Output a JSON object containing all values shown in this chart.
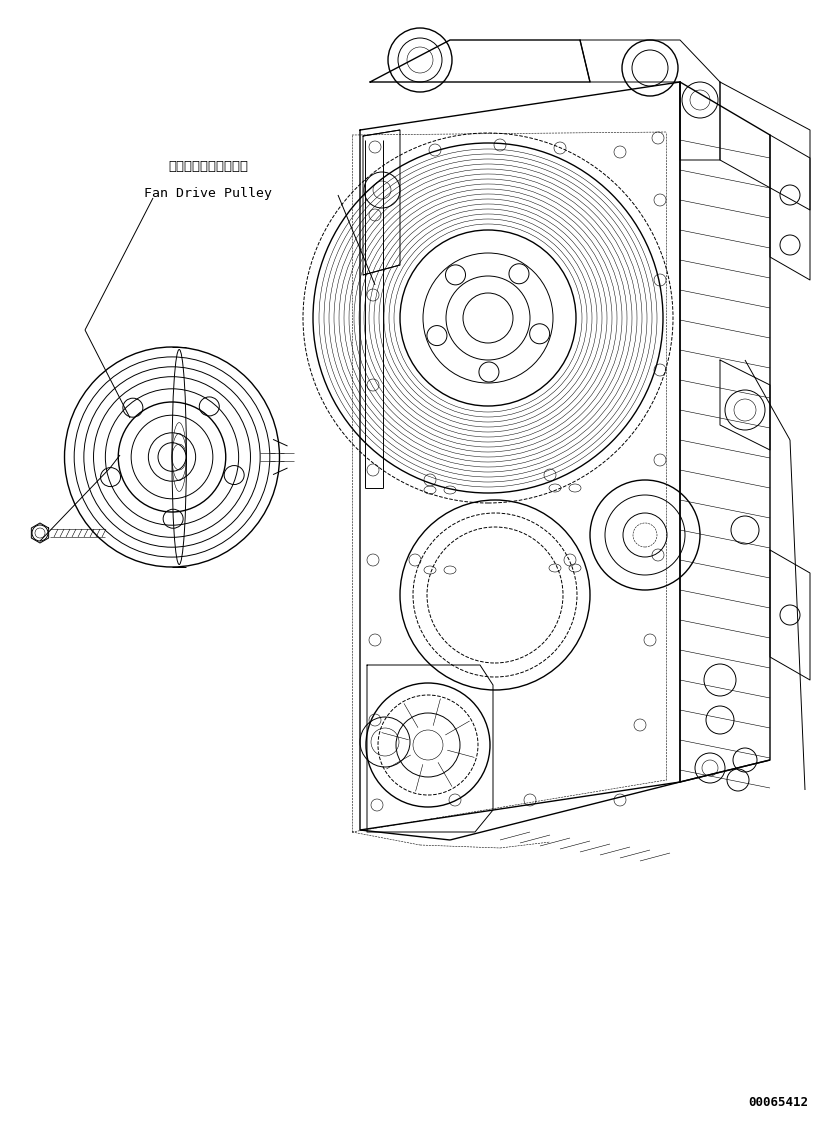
{
  "bg_color": "#ffffff",
  "line_color": "#000000",
  "label_jp": "ファンドライブプーリ",
  "label_en": "Fan Drive Pulley",
  "part_number": "00065412",
  "fig_width": 8.32,
  "fig_height": 11.24,
  "dpi": 100
}
